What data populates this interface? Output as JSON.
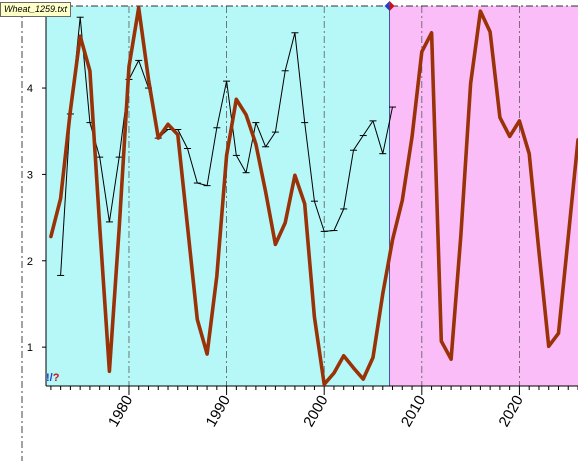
{
  "file_label": "Wheat_1259.txt",
  "corner_marker": {
    "left": "!/",
    "right": "?"
  },
  "chart_data": {
    "type": "line",
    "title": "",
    "xlabel": "",
    "ylabel": "",
    "xlim": [
      1971.5,
      2026
    ],
    "ylim": [
      0.55,
      4.95
    ],
    "y_ticks": [
      1,
      2,
      3,
      4
    ],
    "x_ticks": [
      1980,
      1990,
      2000,
      2010,
      2020
    ],
    "grid": "vertical dash-dot at x ticks, horizontal dash-dot at top",
    "regions": [
      {
        "from": 1971.5,
        "to": 2006.7,
        "color": "#b6f7f7"
      },
      {
        "from": 2006.7,
        "to": 2026,
        "color": "#fbbdf7"
      }
    ],
    "series": [
      {
        "color": "#000000",
        "style": "thin line with error-bar tick marks",
        "x": [
          1973,
          1974,
          1975,
          1976,
          1977,
          1978,
          1979,
          1980,
          1981,
          1982,
          1983,
          1984,
          1985,
          1986,
          1987,
          1988,
          1989,
          1990,
          1991,
          1992,
          1993,
          1994,
          1995,
          1996,
          1997,
          1998,
          1999,
          2000,
          2001,
          2002,
          2003,
          2004,
          2005,
          2006,
          2007
        ],
        "values": [
          1.83,
          3.7,
          4.82,
          3.6,
          3.2,
          2.45,
          3.2,
          4.1,
          4.32,
          4.0,
          3.42,
          3.52,
          3.52,
          3.3,
          2.9,
          2.87,
          3.54,
          4.08,
          3.22,
          3.02,
          3.6,
          3.32,
          3.49,
          4.2,
          4.64,
          3.6,
          2.69,
          2.34,
          2.35,
          2.6,
          3.28,
          3.45,
          3.62,
          3.24,
          3.78
        ]
      },
      {
        "color": "#9a3208",
        "style": "thick line",
        "x": [
          1972,
          1973,
          1974,
          1975,
          1976,
          1977,
          1978,
          1979,
          1980,
          1981,
          1982,
          1983,
          1984,
          1985,
          1986,
          1987,
          1988,
          1989,
          1990,
          1991,
          1992,
          1993,
          1994,
          1995,
          1996,
          1997,
          1998,
          1999,
          2000,
          2001,
          2002,
          2003,
          2004,
          2005,
          2006,
          2007,
          2008,
          2009,
          2010,
          2011,
          2012,
          2013,
          2014,
          2015,
          2016,
          2017,
          2018,
          2019,
          2020,
          2021,
          2022,
          2023,
          2024,
          2025,
          2026
        ],
        "values": [
          2.28,
          2.72,
          3.74,
          4.6,
          4.2,
          2.4,
          0.72,
          2.38,
          4.25,
          4.93,
          4.1,
          3.42,
          3.58,
          3.46,
          2.4,
          1.32,
          0.92,
          1.82,
          3.22,
          3.87,
          3.69,
          3.35,
          2.8,
          2.19,
          2.44,
          2.99,
          2.66,
          1.35,
          0.57,
          0.7,
          0.9,
          0.76,
          0.63,
          0.88,
          1.62,
          2.24,
          2.7,
          3.44,
          4.42,
          4.64,
          1.07,
          0.86,
          2.3,
          4.05,
          4.89,
          4.65,
          3.66,
          3.44,
          3.62,
          3.24,
          2.1,
          1.01,
          1.16,
          2.27,
          3.4
        ]
      }
    ],
    "markers": [
      {
        "x": 2006.7,
        "y": 4.95,
        "shape": "diamond",
        "colors": [
          "#1f3fd0",
          "#d01010"
        ]
      }
    ]
  }
}
